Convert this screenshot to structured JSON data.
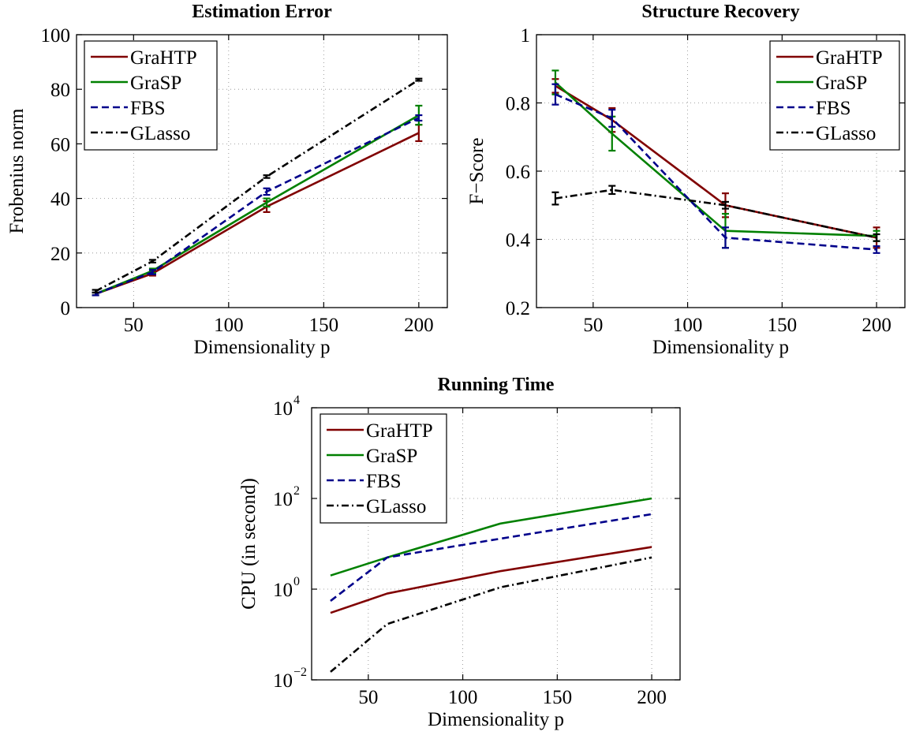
{
  "colors": {
    "GraHTP": "#800000",
    "GraSP": "#008000",
    "FBS": "#00008b",
    "GLasso": "#000000"
  },
  "chart_data": [
    {
      "id": "estimation-error",
      "type": "line",
      "title": "Estimation Error",
      "xlabel": "Dimensionality p",
      "ylabel": "Frobenius norm",
      "xlim": [
        20,
        215
      ],
      "ylim": [
        0,
        100
      ],
      "xticks": [
        50,
        100,
        150,
        200
      ],
      "yticks": [
        0,
        20,
        40,
        60,
        80,
        100
      ],
      "y_scale": "linear",
      "grid": true,
      "legend_position": "top-left",
      "x": [
        30,
        60,
        120,
        200
      ],
      "series": [
        {
          "name": "GraHTP",
          "style": "solid",
          "color": "#800000",
          "values": [
            5,
            12.5,
            37,
            64
          ],
          "errors": [
            0.5,
            0.8,
            2.0,
            3.0
          ]
        },
        {
          "name": "GraSP",
          "style": "solid",
          "color": "#008000",
          "values": [
            5,
            13.5,
            38.5,
            70.5
          ],
          "errors": [
            0.5,
            0.8,
            1.5,
            3.5
          ]
        },
        {
          "name": "FBS",
          "style": "dashed",
          "color": "#00008b",
          "values": [
            5,
            13,
            42.5,
            69.5
          ],
          "errors": [
            0.5,
            0.8,
            1.2,
            1.0
          ]
        },
        {
          "name": "GLasso",
          "style": "dashdot",
          "color": "#000000",
          "values": [
            6,
            17,
            48,
            83.5
          ],
          "errors": [
            0.5,
            0.5,
            0.5,
            0.4
          ]
        }
      ]
    },
    {
      "id": "structure-recovery",
      "type": "line",
      "title": "Structure Recovery",
      "xlabel": "Dimensionality p",
      "ylabel": "F−Score",
      "xlim": [
        20,
        215
      ],
      "ylim": [
        0.2,
        1
      ],
      "xticks": [
        50,
        100,
        150,
        200
      ],
      "yticks": [
        0.2,
        0.4,
        0.6,
        0.8,
        1
      ],
      "ytick_labels": [
        "0.2",
        "0.4",
        "0.6",
        "0.8",
        "1"
      ],
      "y_scale": "linear",
      "grid": true,
      "legend_position": "top-right",
      "x": [
        30,
        60,
        120,
        200
      ],
      "series": [
        {
          "name": "GraHTP",
          "style": "solid",
          "color": "#800000",
          "values": [
            0.85,
            0.75,
            0.5,
            0.405
          ],
          "errors": [
            0.02,
            0.035,
            0.035,
            0.03
          ]
        },
        {
          "name": "GraSP",
          "style": "solid",
          "color": "#008000",
          "values": [
            0.86,
            0.71,
            0.425,
            0.41
          ],
          "errors": [
            0.035,
            0.05,
            0.05,
            0.015
          ]
        },
        {
          "name": "FBS",
          "style": "dashed",
          "color": "#00008b",
          "values": [
            0.825,
            0.755,
            0.405,
            0.37
          ],
          "errors": [
            0.03,
            0.025,
            0.03,
            0.01
          ]
        },
        {
          "name": "GLasso",
          "style": "dashdot",
          "color": "#000000",
          "values": [
            0.52,
            0.545,
            0.5,
            0.405
          ],
          "errors": [
            0.018,
            0.012,
            0.01,
            0.01
          ]
        }
      ]
    },
    {
      "id": "running-time",
      "type": "line",
      "title": "Running Time",
      "xlabel": "Dimensionality p",
      "ylabel": "CPU (in second)",
      "xlim": [
        20,
        215
      ],
      "ylim": [
        0.01,
        10000
      ],
      "xticks": [
        50,
        100,
        150,
        200
      ],
      "yticks": [
        0.01,
        1,
        100,
        10000
      ],
      "ytick_bases": [
        "10",
        "10",
        "10",
        "10"
      ],
      "ytick_exponents": [
        "−2",
        "0",
        "2",
        "4"
      ],
      "y_scale": "log",
      "grid": true,
      "legend_position": "top-left",
      "x": [
        30,
        60,
        120,
        200
      ],
      "series": [
        {
          "name": "GraHTP",
          "style": "solid",
          "color": "#800000",
          "values": [
            0.3,
            0.8,
            2.5,
            8.5
          ]
        },
        {
          "name": "GraSP",
          "style": "solid",
          "color": "#008000",
          "values": [
            2.0,
            5.0,
            28,
            100
          ]
        },
        {
          "name": "FBS",
          "style": "dashed",
          "color": "#00008b",
          "values": [
            0.55,
            5.0,
            13,
            45
          ]
        },
        {
          "name": "GLasso",
          "style": "dashdot",
          "color": "#000000",
          "values": [
            0.015,
            0.17,
            1.1,
            5.0
          ]
        }
      ]
    }
  ]
}
